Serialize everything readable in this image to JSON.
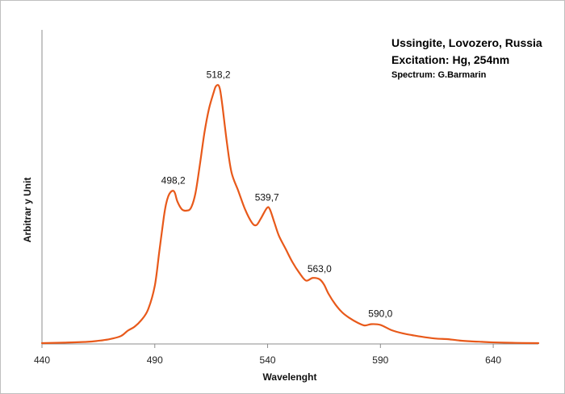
{
  "chart_data": {
    "type": "line",
    "title_lines": [
      "Ussingite, Lovozero, Russia",
      "Excitation: Hg, 254nm"
    ],
    "subtitle": "Spectrum: G.Barmarin",
    "xlabel": "Wavelenght",
    "ylabel": "Arbitrar y Unit",
    "xlim": [
      440,
      660
    ],
    "ylim": [
      0,
      100
    ],
    "xticks": [
      440,
      490,
      540,
      590,
      640
    ],
    "xtick_labels": [
      "440",
      "490",
      "540",
      "590",
      "640"
    ],
    "grid": false,
    "legend": "none",
    "line_color": "#e8591a",
    "series": [
      {
        "x": [
          440,
          450,
          460,
          465,
          470,
          475,
          478,
          481,
          484,
          487,
          490,
          492,
          494,
          495,
          496,
          497,
          498.2,
          499,
          500,
          502,
          504,
          506,
          508,
          510,
          512,
          514,
          516,
          517,
          518.2,
          519,
          520,
          522,
          524,
          527,
          530,
          533,
          535,
          537,
          539.7,
          541,
          543,
          545,
          548,
          551,
          554,
          557,
          560,
          563,
          565,
          567,
          570,
          573,
          576,
          580,
          583,
          586,
          590,
          595,
          600,
          605,
          610,
          615,
          620,
          625,
          630,
          635,
          640,
          650,
          660
        ],
        "y": [
          0.3,
          0.5,
          0.8,
          1.2,
          1.8,
          3.0,
          5.0,
          6.5,
          9.0,
          13.0,
          22.0,
          35.0,
          48.0,
          53.0,
          56.0,
          57.5,
          58.0,
          57.0,
          54.0,
          51.0,
          50.5,
          51.5,
          57.0,
          68.0,
          80.0,
          89.0,
          95.0,
          97.5,
          98.0,
          96.0,
          90.0,
          76.0,
          65.0,
          58.0,
          51.0,
          46.0,
          45.0,
          47.5,
          51.5,
          51.0,
          46.0,
          41.0,
          36.0,
          31.0,
          27.0,
          24.0,
          25.0,
          24.5,
          22.5,
          19.0,
          15.0,
          12.0,
          10.0,
          8.0,
          7.0,
          7.5,
          7.2,
          5.2,
          4.0,
          3.2,
          2.5,
          2.0,
          1.8,
          1.3,
          1.0,
          0.8,
          0.6,
          0.4,
          0.3
        ]
      }
    ],
    "annotations": [
      {
        "text": "498,2",
        "x": 498.2,
        "y": 58.0
      },
      {
        "text": "518,2",
        "x": 518.2,
        "y": 98.0
      },
      {
        "text": "539,7",
        "x": 539.7,
        "y": 51.5
      },
      {
        "text": "563,0",
        "x": 563.0,
        "y": 24.5
      },
      {
        "text": "590,0",
        "x": 590.0,
        "y": 7.5
      }
    ]
  }
}
